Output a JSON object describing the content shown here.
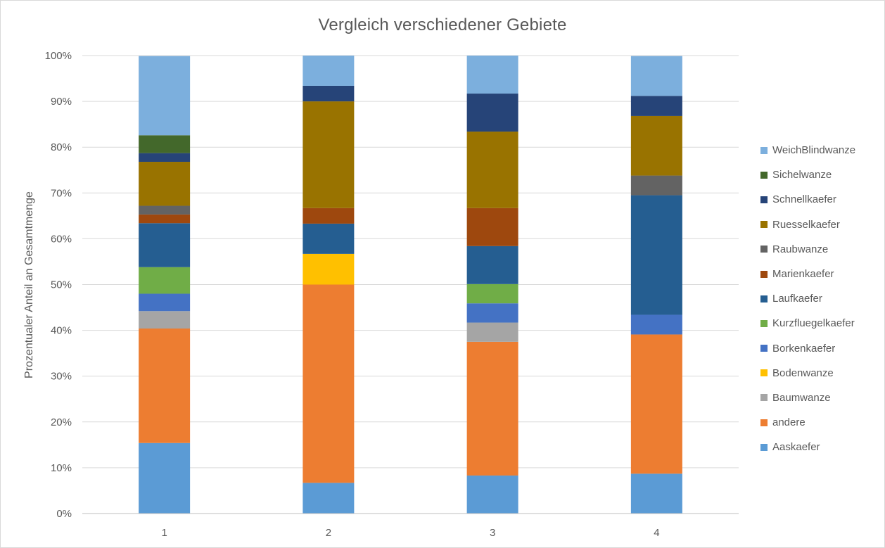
{
  "chart_data": {
    "type": "bar",
    "stacked": true,
    "percent": true,
    "title": "Vergleich verschiedener Gebiete",
    "ylabel": "Prozentualer Anteil an Gesamtmenge",
    "xlabel": "",
    "categories": [
      "1",
      "2",
      "3",
      "4"
    ],
    "ylim": [
      0,
      100
    ],
    "yticks": [
      "0%",
      "10%",
      "20%",
      "30%",
      "40%",
      "50%",
      "60%",
      "70%",
      "80%",
      "90%",
      "100%"
    ],
    "grid": true,
    "legend_position": "right",
    "series": [
      {
        "name": "Aaskaefer",
        "color": "#5b9bd5",
        "values": [
          15.4,
          6.7,
          8.3,
          8.7
        ]
      },
      {
        "name": "andere",
        "color": "#ed7d31",
        "values": [
          25.0,
          43.3,
          29.2,
          30.4
        ]
      },
      {
        "name": "Baumwanze",
        "color": "#a5a5a5",
        "values": [
          3.8,
          0,
          4.2,
          0
        ]
      },
      {
        "name": "Bodenwanze",
        "color": "#ffc000",
        "values": [
          0,
          6.7,
          0,
          0
        ]
      },
      {
        "name": "Borkenkaefer",
        "color": "#4472c4",
        "values": [
          3.8,
          0,
          4.2,
          4.3
        ]
      },
      {
        "name": "Kurzfluegelkaefer",
        "color": "#70ad47",
        "values": [
          5.8,
          0,
          4.2,
          0
        ]
      },
      {
        "name": "Laufkaefer",
        "color": "#255e91",
        "values": [
          9.6,
          6.6,
          8.3,
          26.1
        ]
      },
      {
        "name": "Marienkaefer",
        "color": "#9e480e",
        "values": [
          1.9,
          3.4,
          8.3,
          0
        ]
      },
      {
        "name": "Raubwanze",
        "color": "#636363",
        "values": [
          1.9,
          0,
          0,
          4.3
        ]
      },
      {
        "name": "Ruesselkaefer",
        "color": "#997300",
        "values": [
          9.6,
          23.3,
          16.7,
          13.0
        ]
      },
      {
        "name": "Schnellkaefer",
        "color": "#264478",
        "values": [
          1.9,
          3.4,
          8.3,
          4.4
        ]
      },
      {
        "name": "Sichelwanze",
        "color": "#43682b",
        "values": [
          3.9,
          0,
          0,
          0
        ]
      },
      {
        "name": "WeichBlindwanze",
        "color": "#7cafdd",
        "values": [
          17.3,
          6.6,
          8.3,
          8.7
        ]
      }
    ]
  }
}
